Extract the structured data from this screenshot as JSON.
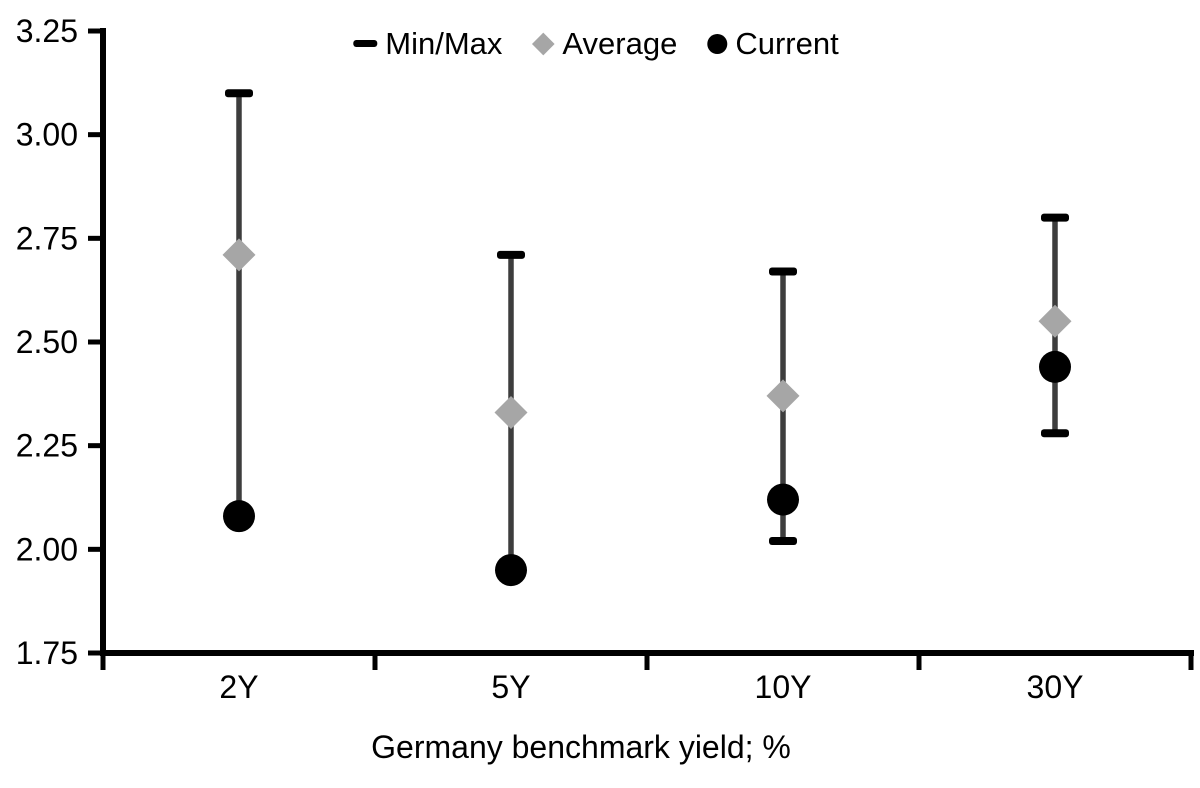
{
  "chart_data": {
    "type": "scatter",
    "subtype": "min-max range bars with average and current point markers",
    "title": "",
    "xlabel": "Germany benchmark yield; %",
    "ylabel": "",
    "categories": [
      "2Y",
      "5Y",
      "10Y",
      "30Y"
    ],
    "ylim": [
      1.75,
      3.25
    ],
    "ytick_step": 0.25,
    "ytick_labels": [
      "3.25",
      "3.00",
      "2.75",
      "2.50",
      "2.25",
      "2.00",
      "1.75"
    ],
    "grid": false,
    "legend_position": "top-center",
    "legend": [
      {
        "label": "Min/Max",
        "marker": "dash",
        "color": "#000000"
      },
      {
        "label": "Average",
        "marker": "diamond",
        "color": "#a6a6a6"
      },
      {
        "label": "Current",
        "marker": "circle",
        "color": "#000000"
      }
    ],
    "series": [
      {
        "name": "Min/Max",
        "role": "range",
        "marker": "cap",
        "max": [
          3.1,
          2.71,
          2.67,
          2.8
        ],
        "min": [
          2.08,
          1.95,
          2.02,
          2.28
        ]
      },
      {
        "name": "Average",
        "role": "point",
        "marker": "diamond",
        "values": [
          2.71,
          2.33,
          2.37,
          2.55
        ]
      },
      {
        "name": "Current",
        "role": "point",
        "marker": "circle",
        "values": [
          2.08,
          1.95,
          2.12,
          2.44
        ]
      }
    ]
  },
  "colors": {
    "background": "#ffffff",
    "axis": "#000000",
    "text": "#000000",
    "whisker_line": "#3d3d3d",
    "cap": "#000000",
    "average_marker": "#a6a6a6",
    "current_marker": "#000000"
  }
}
